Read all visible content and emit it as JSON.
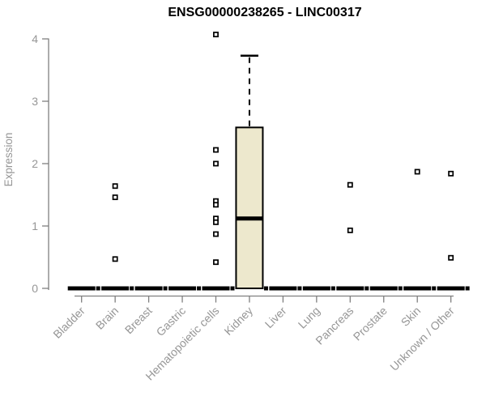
{
  "chart_data": {
    "type": "boxplot",
    "title": "ENSG00000238265 - LINC00317",
    "ylabel": "Expression",
    "xlabel": "",
    "ylim": [
      0,
      4
    ],
    "yticks": [
      0,
      1,
      2,
      3,
      4
    ],
    "grid": false,
    "legend": null,
    "categories": [
      "Bladder",
      "Brain",
      "Breast",
      "Gastric",
      "Hematopoietic cells",
      "Kidney",
      "Liver",
      "Lung",
      "Pancreas",
      "Prostate",
      "Skin",
      "Unknown / Other"
    ],
    "boxes": [
      {
        "category": "Bladder",
        "q1": 0,
        "median": 0,
        "q3": 0,
        "whisker_low": 0,
        "whisker_high": 0,
        "outliers": []
      },
      {
        "category": "Brain",
        "q1": 0,
        "median": 0,
        "q3": 0,
        "whisker_low": 0,
        "whisker_high": 0,
        "outliers": [
          1.64,
          1.46,
          0.47
        ]
      },
      {
        "category": "Breast",
        "q1": 0,
        "median": 0,
        "q3": 0,
        "whisker_low": 0,
        "whisker_high": 0,
        "outliers": []
      },
      {
        "category": "Gastric",
        "q1": 0,
        "median": 0,
        "q3": 0,
        "whisker_low": 0,
        "whisker_high": 0,
        "outliers": []
      },
      {
        "category": "Hematopoietic cells",
        "q1": 0,
        "median": 0,
        "q3": 0,
        "whisker_low": 0,
        "whisker_high": 0,
        "outliers": [
          4.07,
          2.22,
          2.0,
          1.4,
          1.34,
          1.12,
          1.06,
          0.87,
          0.42
        ]
      },
      {
        "category": "Kidney",
        "q1": 0,
        "median": 1.12,
        "q3": 2.58,
        "whisker_low": 0,
        "whisker_high": 3.73,
        "outliers": []
      },
      {
        "category": "Liver",
        "q1": 0,
        "median": 0,
        "q3": 0,
        "whisker_low": 0,
        "whisker_high": 0,
        "outliers": []
      },
      {
        "category": "Lung",
        "q1": 0,
        "median": 0,
        "q3": 0,
        "whisker_low": 0,
        "whisker_high": 0,
        "outliers": []
      },
      {
        "category": "Pancreas",
        "q1": 0,
        "median": 0,
        "q3": 0,
        "whisker_low": 0,
        "whisker_high": 0,
        "outliers": [
          1.66,
          0.93
        ]
      },
      {
        "category": "Prostate",
        "q1": 0,
        "median": 0,
        "q3": 0,
        "whisker_low": 0,
        "whisker_high": 0,
        "outliers": []
      },
      {
        "category": "Skin",
        "q1": 0,
        "median": 0,
        "q3": 0,
        "whisker_low": 0,
        "whisker_high": 0,
        "outliers": [
          1.87
        ]
      },
      {
        "category": "Unknown / Other",
        "q1": 0,
        "median": 0,
        "q3": 0,
        "whisker_low": 0,
        "whisker_high": 0,
        "outliers": [
          1.84,
          0.49
        ]
      }
    ],
    "colors": {
      "box_fill": "#ede8cd",
      "box_stroke": "#000000",
      "median": "#000000",
      "zero_bar": "#000000",
      "outlier_stroke": "#000000",
      "outlier_fill": "#ffffff",
      "axis_line": "#7f7f7f",
      "tick_label": "#969696",
      "title": "#000000"
    }
  }
}
